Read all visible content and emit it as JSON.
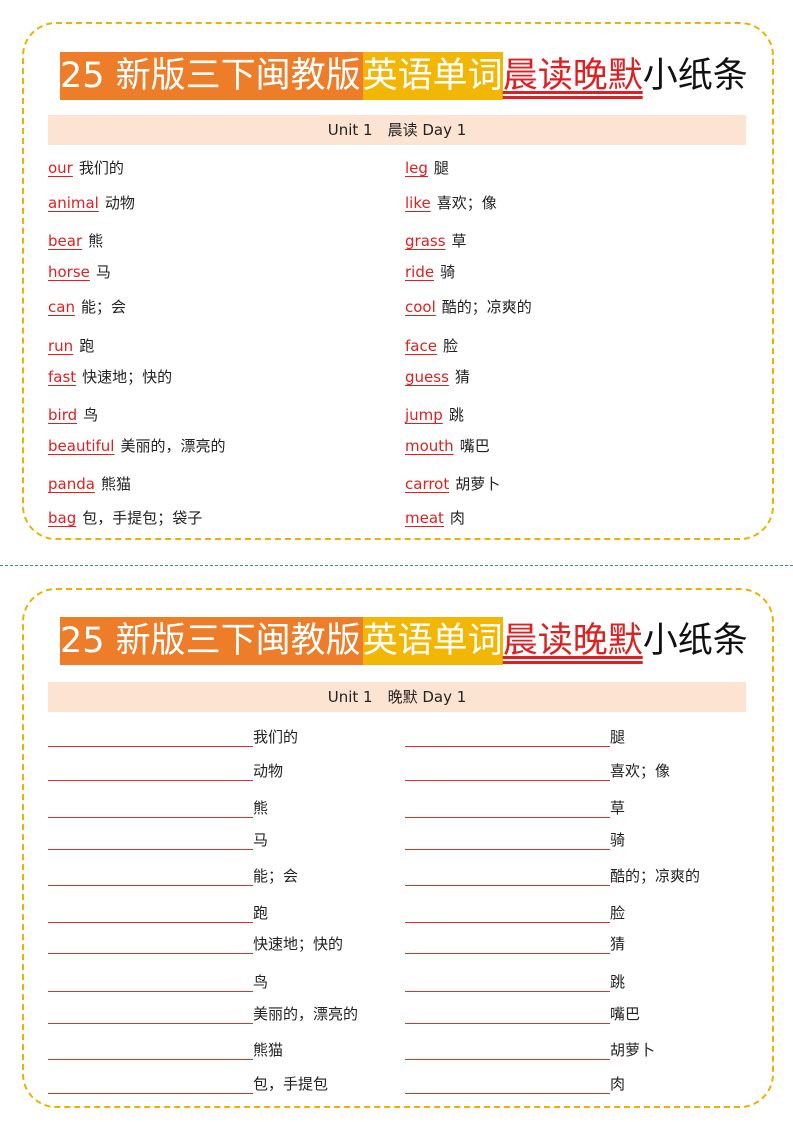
{
  "cards": [
    {
      "title": [
        "25 新版三下闽教版",
        "英语单词",
        "晨读晚默",
        "小纸条"
      ],
      "subheader": "Unit 1　晨读  Day 1",
      "rows": [
        {
          "left": {
            "word": "our",
            "meaning": "我们的"
          },
          "right": {
            "word": "leg",
            "meaning": "腿"
          }
        },
        {
          "left": {
            "word": "animal",
            "meaning": "动物"
          },
          "right": {
            "word": "like",
            "meaning": "喜欢；像"
          }
        },
        {
          "left": {
            "word": "bear",
            "meaning": "熊"
          },
          "right": {
            "word": "grass",
            "meaning": "草"
          }
        },
        {
          "left": {
            "word": "horse",
            "meaning": "马"
          },
          "right": {
            "word": "ride",
            "meaning": "骑"
          }
        },
        {
          "left": {
            "word": "can",
            "meaning": "能；会"
          },
          "right": {
            "word": "cool",
            "meaning": "酷的；凉爽的"
          }
        },
        {
          "left": {
            "word": "run",
            "meaning": "跑"
          },
          "right": {
            "word": "face",
            "meaning": "脸"
          }
        },
        {
          "left": {
            "word": "fast",
            "meaning": "快速地；快的"
          },
          "right": {
            "word": "guess",
            "meaning": "猜"
          }
        },
        {
          "left": {
            "word": "bird",
            "meaning": "鸟"
          },
          "right": {
            "word": "jump",
            "meaning": "跳"
          }
        },
        {
          "left": {
            "word": "beautiful",
            "meaning": "美丽的，漂亮的"
          },
          "right": {
            "word": "mouth",
            "meaning": "嘴巴"
          }
        },
        {
          "left": {
            "word": "panda",
            "meaning": "熊猫"
          },
          "right": {
            "word": "carrot",
            "meaning": "胡萝卜"
          }
        },
        {
          "left": {
            "word": "bag",
            "meaning": "包，手提包；袋子"
          },
          "right": {
            "word": "meat",
            "meaning": "肉"
          }
        }
      ]
    },
    {
      "title": [
        "25 新版三下闽教版",
        "英语单词",
        "晨读晚默",
        "小纸条"
      ],
      "subheader": "Unit 1　晚默  Day 1",
      "rows": [
        {
          "left": {
            "meaning": "我们的"
          },
          "right": {
            "meaning": "腿"
          }
        },
        {
          "left": {
            "meaning": "动物"
          },
          "right": {
            "meaning": "喜欢；像"
          }
        },
        {
          "left": {
            "meaning": "熊"
          },
          "right": {
            "meaning": "草"
          }
        },
        {
          "left": {
            "meaning": "马"
          },
          "right": {
            "meaning": "骑"
          }
        },
        {
          "left": {
            "meaning": "能；会"
          },
          "right": {
            "meaning": "酷的；凉爽的"
          }
        },
        {
          "left": {
            "meaning": "跑"
          },
          "right": {
            "meaning": "脸"
          }
        },
        {
          "left": {
            "meaning": "快速地；快的"
          },
          "right": {
            "meaning": "猜"
          }
        },
        {
          "left": {
            "meaning": "鸟"
          },
          "right": {
            "meaning": "跳"
          }
        },
        {
          "left": {
            "meaning": "美丽的，漂亮的"
          },
          "right": {
            "meaning": "嘴巴"
          }
        },
        {
          "left": {
            "meaning": "熊猫"
          },
          "right": {
            "meaning": "胡萝卜"
          }
        },
        {
          "left": {
            "meaning": "包，手提包"
          },
          "right": {
            "meaning": "肉"
          }
        }
      ]
    }
  ]
}
